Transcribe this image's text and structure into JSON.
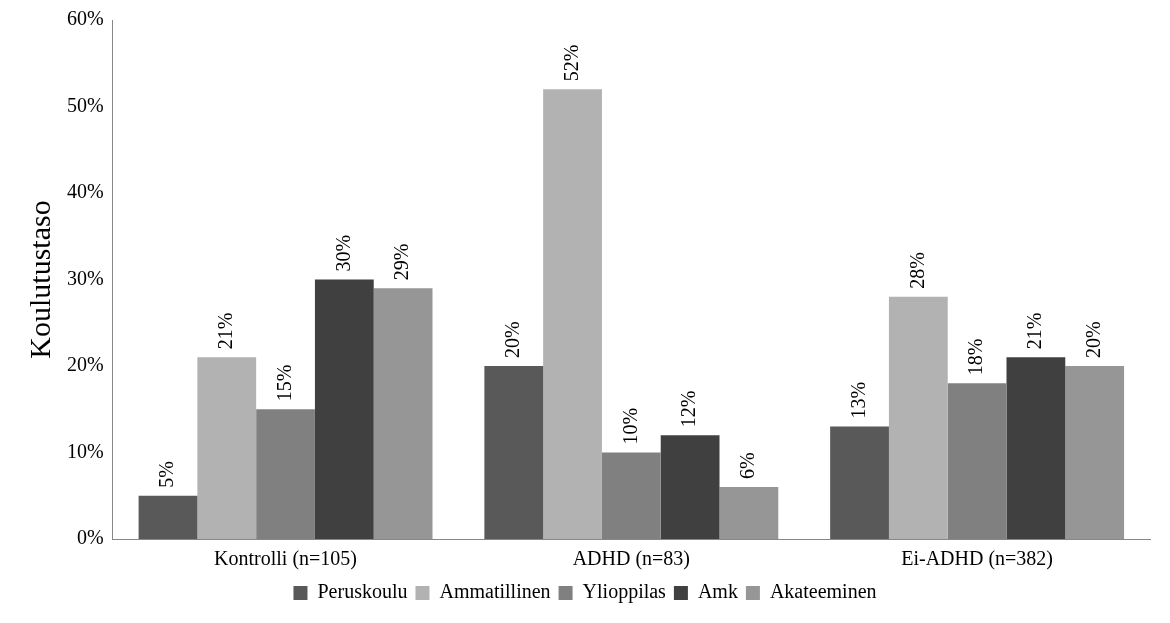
{
  "chart_data": {
    "type": "bar",
    "ylabel": "Koulutustaso",
    "categories": [
      "Kontrolli (n=105)",
      "ADHD (n=83)",
      "Ei-ADHD (n=382)"
    ],
    "series": [
      {
        "name": "Peruskoulu",
        "color": "#595959",
        "values": [
          5,
          20,
          13
        ],
        "value_labels": [
          "5%",
          "20%",
          "13%"
        ]
      },
      {
        "name": "Ammatillinen",
        "color": "#b2b2b2",
        "values": [
          21,
          52,
          28
        ],
        "value_labels": [
          "21%",
          "52%",
          "28%"
        ]
      },
      {
        "name": "Ylioppilas",
        "color": "#808080",
        "values": [
          15,
          10,
          18
        ],
        "value_labels": [
          "15%",
          "10%",
          "18%"
        ]
      },
      {
        "name": "Amk",
        "color": "#404040",
        "values": [
          30,
          12,
          21
        ],
        "value_labels": [
          "30%",
          "12%",
          "21%"
        ]
      },
      {
        "name": "Akateeminen",
        "color": "#969696",
        "values": [
          29,
          6,
          20
        ],
        "value_labels": [
          "29%",
          "6%",
          "20%"
        ]
      }
    ],
    "ylim": [
      0,
      60
    ],
    "yticks": [
      {
        "value": 0,
        "label": "0%"
      },
      {
        "value": 10,
        "label": "10%"
      },
      {
        "value": 20,
        "label": "20%"
      },
      {
        "value": 30,
        "label": "30%"
      },
      {
        "value": 40,
        "label": "40%"
      },
      {
        "value": 50,
        "label": "50%"
      },
      {
        "value": 60,
        "label": "60%"
      }
    ],
    "grid": false,
    "legend": "bottom"
  }
}
